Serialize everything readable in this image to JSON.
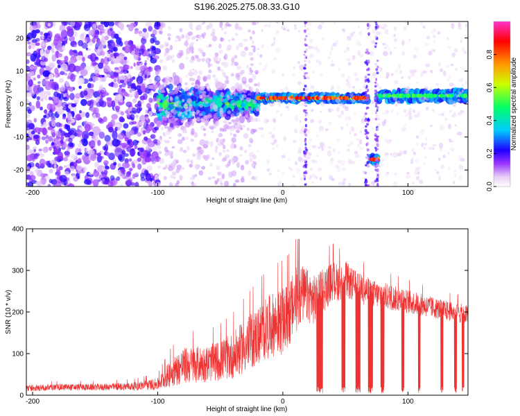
{
  "page": {
    "title": "S196.2025.275.08.33.G10"
  },
  "chart_data": [
    {
      "type": "heatmap",
      "id": "spectrogram",
      "xlabel": "Height of straight line (km)",
      "ylabel": "Frequency (Hz)",
      "xlim": [
        -205,
        148
      ],
      "ylim": [
        -25,
        25
      ],
      "xticks": [
        -200,
        -100,
        0,
        100
      ],
      "xtick_labels": [
        "-200",
        "-100",
        "0",
        "100"
      ],
      "yticks": [
        -20,
        -10,
        0,
        10,
        20
      ],
      "ytick_labels": [
        "-20",
        "-10",
        "0",
        "10",
        "20"
      ],
      "colorbar": {
        "label": "Normalized spectral amplitude",
        "range": [
          0.0,
          1.0
        ],
        "ticks": [
          0.0,
          0.2,
          0.4,
          0.6,
          0.8
        ],
        "tick_labels": [
          "0.0",
          "0.2",
          "0.4",
          "0.6",
          "0.8"
        ],
        "colormap": [
          "#ffffff",
          "#e6cdf5",
          "#9933ff",
          "#1f00ff",
          "#00ccff",
          "#00ff66",
          "#ccff00",
          "#ff9900",
          "#ff0000",
          "#ff33cc"
        ]
      },
      "features": [
        {
          "x_range": [
            -205,
            -100
          ],
          "freq_range": [
            -25,
            25
          ],
          "amplitude": 0.2,
          "kind": "noise"
        },
        {
          "x_range": [
            -100,
            -20
          ],
          "freq_center": 0,
          "freq_width": 6,
          "amplitude": 0.4,
          "kind": "band"
        },
        {
          "x_range": [
            -20,
            68
          ],
          "freq_center": 1.8,
          "freq_width": 1.2,
          "amplitude": 0.9,
          "kind": "line"
        },
        {
          "x_range": [
            70,
            76
          ],
          "freq_center": -16.8,
          "freq_width": 1.5,
          "amplitude": 0.9,
          "kind": "line"
        },
        {
          "x_range": [
            75,
            148
          ],
          "freq_center": 2.5,
          "freq_width": 2.0,
          "amplitude": 0.55,
          "kind": "line"
        }
      ]
    },
    {
      "type": "line",
      "id": "snr",
      "xlabel": "Height of straight line (km)",
      "ylabel": "SNR (10 * v/v)",
      "xlim": [
        -205,
        148
      ],
      "ylim": [
        0,
        400
      ],
      "xticks": [
        -200,
        -100,
        0,
        100
      ],
      "xtick_labels": [
        "-200",
        "-100",
        "0",
        "100"
      ],
      "yticks": [
        0,
        100,
        200,
        300,
        400
      ],
      "ytick_labels": [
        "0",
        "100",
        "200",
        "300",
        "400"
      ],
      "color": "#ee3333",
      "series": [
        {
          "name": "SNR",
          "x": [
            -205,
            -180,
            -150,
            -120,
            -100,
            -90,
            -80,
            -70,
            -60,
            -50,
            -40,
            -30,
            -20,
            -10,
            0,
            5,
            10,
            15,
            20,
            25,
            30,
            35,
            40,
            45,
            50,
            55,
            60,
            65,
            70,
            75,
            80,
            90,
            100,
            110,
            120,
            130,
            140,
            148
          ],
          "y": [
            18,
            20,
            20,
            22,
            28,
            55,
            75,
            78,
            80,
            88,
            100,
            125,
            150,
            175,
            185,
            200,
            235,
            250,
            245,
            235,
            250,
            265,
            280,
            275,
            285,
            270,
            262,
            256,
            250,
            245,
            243,
            235,
            228,
            220,
            213,
            206,
            200,
            195
          ],
          "noise_amplitude": [
            10,
            10,
            10,
            12,
            18,
            40,
            55,
            55,
            55,
            60,
            70,
            80,
            90,
            95,
            100,
            100,
            100,
            90,
            80,
            75,
            70,
            65,
            60,
            55,
            55,
            50,
            48,
            45,
            45,
            40,
            40,
            38,
            36,
            34,
            32,
            30,
            30,
            30
          ],
          "dropouts": [
            [
              27,
              32
            ],
            [
              47,
              50
            ],
            [
              58,
              62
            ],
            [
              68,
              72
            ],
            [
              78,
              81
            ],
            [
              95,
              97
            ],
            [
              108,
              110
            ],
            [
              126,
              128
            ],
            [
              137,
              139
            ],
            [
              143,
              145
            ]
          ]
        }
      ]
    }
  ]
}
